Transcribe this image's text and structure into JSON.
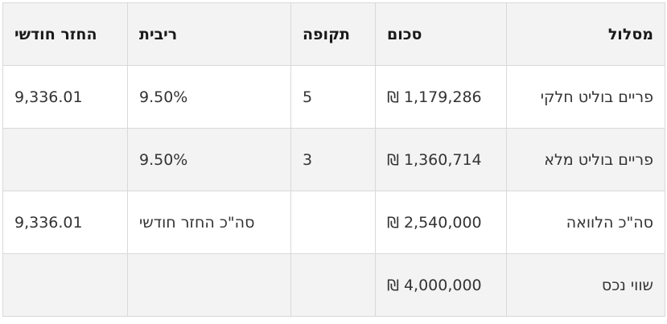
{
  "headers": {
    "route": "מסלול",
    "sum": "סכום",
    "period": "תקופה",
    "rate": "ריבית",
    "monthly": "החזר חודשי"
  },
  "rows": [
    {
      "route": "פריים בוליט חלקי",
      "sum": "₪ 1,179,286",
      "period": "5",
      "rate": "9.50%",
      "monthly": "9,336.01"
    },
    {
      "route": "פריים בוליט מלא",
      "sum": "₪ 1,360,714",
      "period": "3",
      "rate": "9.50%",
      "monthly": ""
    },
    {
      "route": "סה\"כ הלוואה",
      "sum": "₪ 2,540,000",
      "period": "",
      "rate": "סה\"כ החזר חודשי",
      "monthly": "9,336.01"
    },
    {
      "route": "שווי נכס",
      "sum": "₪ 4,000,000",
      "period": "",
      "rate": "",
      "monthly": ""
    }
  ]
}
